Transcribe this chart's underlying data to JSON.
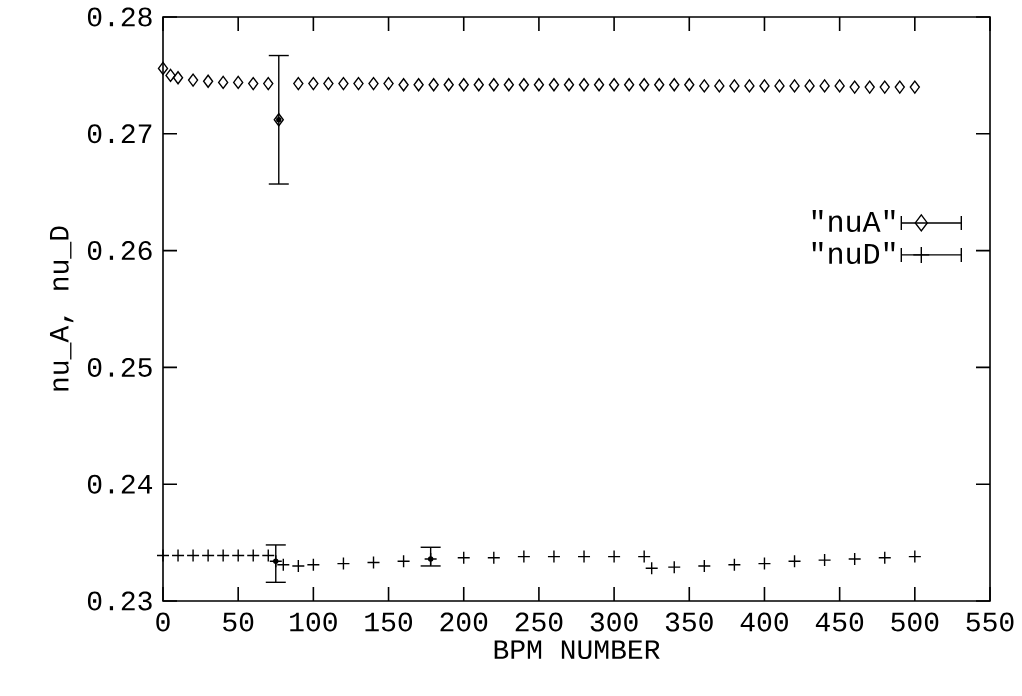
{
  "chart_data": {
    "type": "scatter",
    "xlabel": "BPM NUMBER",
    "ylabel": "nu_A, nu_D",
    "xlim": [
      0,
      550
    ],
    "xticks": [
      0,
      50,
      100,
      150,
      200,
      250,
      300,
      350,
      400,
      450,
      500,
      550
    ],
    "ylim": [
      0.23,
      0.28
    ],
    "yticks": [
      0.23,
      0.24,
      0.25,
      0.26,
      0.27,
      0.28
    ],
    "legend": "right",
    "grid": false,
    "series": [
      {
        "name": "\"nuA\"",
        "color": "#000000",
        "marker": "diamond",
        "x": [
          0,
          5,
          10,
          20,
          30,
          40,
          50,
          60,
          70,
          77,
          90,
          100,
          110,
          120,
          130,
          140,
          150,
          160,
          170,
          180,
          190,
          200,
          210,
          220,
          230,
          240,
          250,
          260,
          270,
          280,
          290,
          300,
          310,
          320,
          330,
          340,
          350,
          360,
          370,
          380,
          390,
          400,
          410,
          420,
          430,
          440,
          450,
          460,
          470,
          480,
          490,
          500
        ],
        "values": [
          0.2756,
          0.275,
          0.2748,
          0.2746,
          0.2745,
          0.2744,
          0.2744,
          0.2743,
          0.2743,
          0.2712,
          0.2743,
          0.2743,
          0.2743,
          0.2743,
          0.2743,
          0.2743,
          0.2743,
          0.2742,
          0.2742,
          0.2742,
          0.2742,
          0.2742,
          0.2742,
          0.2742,
          0.2742,
          0.2742,
          0.2742,
          0.2742,
          0.2742,
          0.2742,
          0.2742,
          0.2742,
          0.2742,
          0.2742,
          0.2742,
          0.2742,
          0.2742,
          0.2741,
          0.2741,
          0.2741,
          0.2741,
          0.2741,
          0.2741,
          0.2741,
          0.2741,
          0.2741,
          0.2741,
          0.274,
          0.274,
          0.274,
          0.274,
          0.274
        ],
        "errors": [
          null,
          null,
          null,
          null,
          null,
          null,
          null,
          null,
          null,
          0.0055,
          null,
          null,
          null,
          null,
          null,
          null,
          null,
          null,
          null,
          null,
          null,
          null,
          null,
          null,
          null,
          null,
          null,
          null,
          null,
          null,
          null,
          null,
          null,
          null,
          null,
          null,
          null,
          null,
          null,
          null,
          null,
          null,
          null,
          null,
          null,
          null,
          null,
          null,
          null,
          null,
          null,
          null
        ]
      },
      {
        "name": "\"nuD\"",
        "color": "#000000",
        "marker": "cross",
        "x": [
          0,
          10,
          20,
          30,
          40,
          50,
          60,
          70,
          75,
          80,
          90,
          100,
          120,
          140,
          160,
          178,
          200,
          220,
          240,
          260,
          280,
          300,
          320,
          325,
          340,
          360,
          380,
          400,
          420,
          440,
          460,
          480,
          500
        ],
        "values": [
          0.2339,
          0.2339,
          0.2339,
          0.2339,
          0.2339,
          0.2339,
          0.2339,
          0.2339,
          0.2334,
          0.2331,
          0.233,
          0.2331,
          0.2332,
          0.2333,
          0.2334,
          0.2336,
          0.2337,
          0.2337,
          0.2338,
          0.2338,
          0.2338,
          0.2338,
          0.2338,
          0.2328,
          0.2329,
          0.233,
          0.2331,
          0.2332,
          0.2334,
          0.2335,
          0.2336,
          0.2337,
          0.2338
        ],
        "errors": [
          null,
          null,
          null,
          null,
          null,
          null,
          null,
          null,
          [
            0.2316,
            0.2348
          ],
          null,
          null,
          null,
          null,
          null,
          null,
          [
            0.233,
            0.2346
          ],
          null,
          null,
          null,
          null,
          null,
          null,
          null,
          null,
          null,
          null,
          null,
          null,
          null,
          null,
          null,
          null,
          null
        ]
      }
    ]
  }
}
